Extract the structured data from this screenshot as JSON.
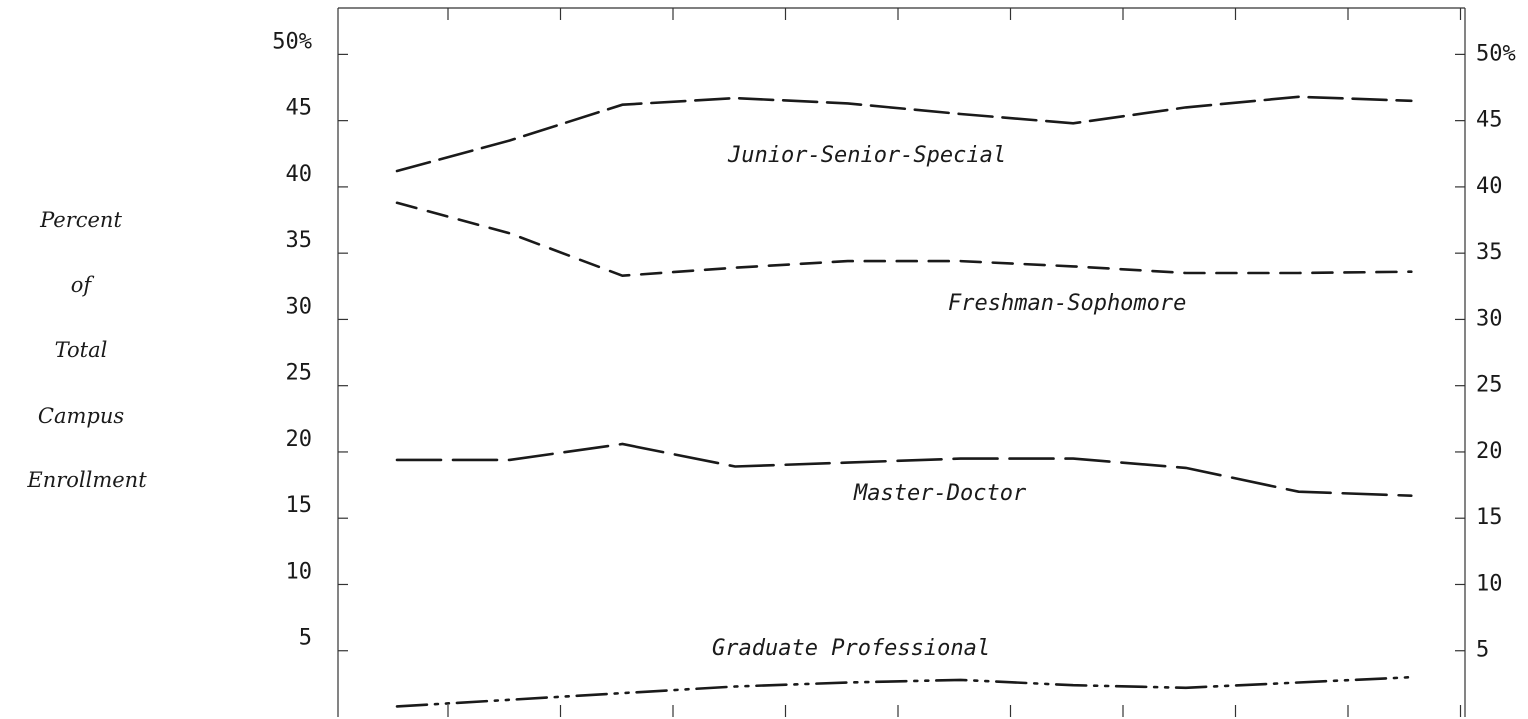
{
  "chart_data": {
    "type": "line",
    "xlabel": "",
    "ylabel_lines": [
      "Percent",
      "of",
      "Total",
      "Campus",
      "Enrollment"
    ],
    "ylim": [
      0,
      53.5
    ],
    "y_tick_values": [
      5,
      10,
      15,
      20,
      25,
      30,
      35,
      40,
      45,
      50
    ],
    "y_tick_labels_left": [
      "5",
      "10",
      "15",
      "20",
      "25",
      "30",
      "35",
      "40",
      "45",
      "50%"
    ],
    "y_tick_labels_right": [
      "5",
      "10",
      "15",
      "20",
      "25",
      "30",
      "35",
      "40",
      "45",
      "50%"
    ],
    "x_ticks_count": 10,
    "x": [
      0,
      1,
      2,
      3,
      4,
      5,
      6,
      7,
      8,
      9
    ],
    "series": [
      {
        "name": "Junior-Senior-Special",
        "values": [
          41.2,
          43.5,
          46.2,
          46.7,
          46.3,
          45.5,
          44.8,
          46.0,
          46.8,
          46.5
        ],
        "dash": "34,10"
      },
      {
        "name": "Freshman-Sophomore",
        "values": [
          38.8,
          36.5,
          33.3,
          33.9,
          34.4,
          34.4,
          34.0,
          33.5,
          33.5,
          33.6
        ],
        "dash": "20,12"
      },
      {
        "name": "Master-Doctor",
        "values": [
          19.4,
          19.4,
          20.6,
          18.9,
          19.2,
          19.5,
          19.5,
          18.8,
          17.0,
          16.7
        ],
        "dash": "44,12"
      },
      {
        "name": "Graduate Professional",
        "values": [
          0.8,
          1.3,
          1.8,
          2.3,
          2.6,
          2.8,
          2.4,
          2.2,
          2.6,
          3.0
        ],
        "dash": "30,8,3,8,3,8"
      }
    ]
  }
}
